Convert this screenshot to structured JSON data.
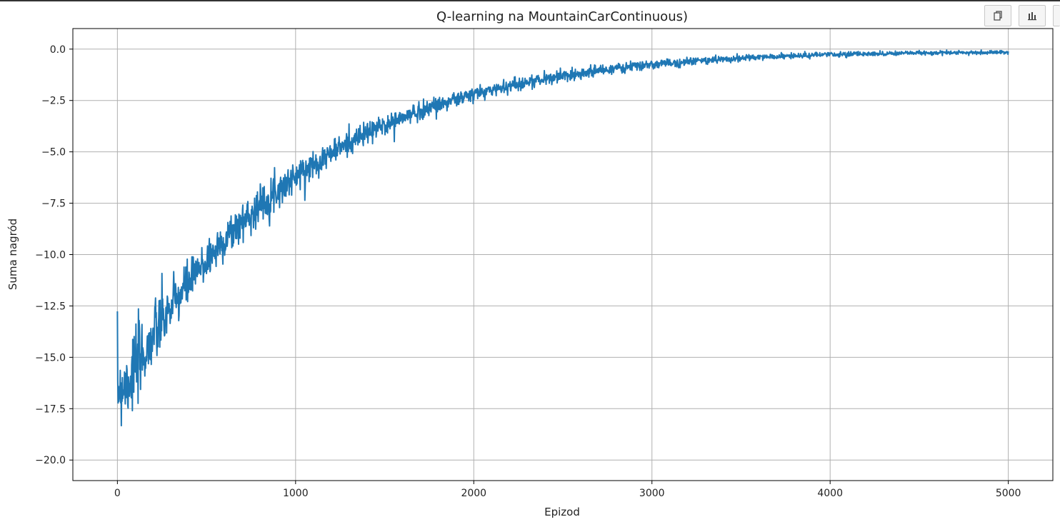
{
  "toolbar": {
    "buttons": [
      {
        "icon": "copy-icon"
      },
      {
        "icon": "bar-chart-icon"
      },
      {
        "icon": "more-icon"
      }
    ]
  },
  "colors": {
    "line": "#1f77b4",
    "grid": "#b0b0b0",
    "axis": "#000000",
    "text": "#222222"
  },
  "chart_data": {
    "type": "line",
    "title": "Q-learning na MountainCarContinuous)",
    "xlabel": "Epizod",
    "ylabel": "Suma nagród",
    "xlim": [
      -250,
      5250
    ],
    "ylim": [
      -21,
      1
    ],
    "xticks": [
      0,
      1000,
      2000,
      3000,
      4000,
      5000
    ],
    "xtick_labels": [
      "0",
      "1000",
      "2000",
      "3000",
      "4000",
      "5000"
    ],
    "yticks": [
      0,
      -2.5,
      -5,
      -7.5,
      -10,
      -12.5,
      -15,
      -17.5,
      -20
    ],
    "ytick_labels": [
      "0.0",
      "−2.5",
      "−5.0",
      "−7.5",
      "−10.0",
      "−12.5",
      "−15.0",
      "−17.5",
      "−20.0"
    ],
    "grid": true,
    "series": [
      {
        "x": [
          0,
          50,
          100,
          150,
          200,
          250,
          300,
          350,
          400,
          500,
          600,
          700,
          800,
          900,
          1000,
          1100,
          1200,
          1300,
          1400,
          1500,
          1600,
          1700,
          1800,
          1900,
          2000,
          2200,
          2400,
          2600,
          2800,
          3000,
          3200,
          3400,
          3600,
          3800,
          4000,
          4200,
          4400,
          4600,
          4800,
          5000
        ],
        "y": [
          -16.5,
          -16.2,
          -15.6,
          -14.8,
          -14.0,
          -13.3,
          -12.6,
          -12.0,
          -11.4,
          -10.3,
          -9.3,
          -8.4,
          -7.6,
          -6.85,
          -6.2,
          -5.6,
          -5.05,
          -4.55,
          -4.1,
          -3.7,
          -3.35,
          -3.0,
          -2.7,
          -2.45,
          -2.2,
          -1.78,
          -1.45,
          -1.17,
          -0.94,
          -0.76,
          -0.61,
          -0.49,
          -0.4,
          -0.33,
          -0.27,
          -0.23,
          -0.2,
          -0.18,
          -0.17,
          -0.16
        ],
        "noise": [
          1.6,
          1.6,
          1.6,
          1.4,
          1.3,
          1.2,
          1.1,
          1.0,
          0.9,
          0.85,
          0.8,
          0.75,
          0.7,
          0.65,
          0.6,
          0.55,
          0.5,
          0.48,
          0.45,
          0.42,
          0.4,
          0.38,
          0.35,
          0.32,
          0.3,
          0.28,
          0.25,
          0.22,
          0.2,
          0.18,
          0.16,
          0.14,
          0.12,
          0.11,
          0.1,
          0.09,
          0.08,
          0.08,
          0.07,
          0.07
        ]
      }
    ]
  }
}
